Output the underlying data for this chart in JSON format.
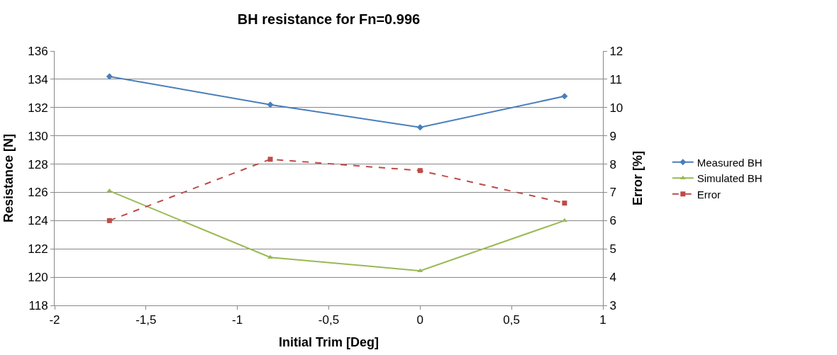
{
  "chart_data": {
    "type": "line",
    "title": "BH resistance for Fn=0.996",
    "xlabel": "Initial Trim [Deg]",
    "ylabel": "Resistance [N]",
    "y2label": "Error [%]",
    "x": [
      -1.7,
      -0.82,
      0,
      0.79
    ],
    "series": [
      {
        "name": "Measured BH",
        "color": "#4a7ebb",
        "values": [
          134.2,
          132.2,
          130.6,
          132.8
        ],
        "marker": "diamond",
        "line_style": "solid"
      },
      {
        "name": "Simulated BH",
        "color": "#98b954",
        "values": [
          126.1,
          121.4,
          120.45,
          124.0
        ],
        "marker": "triangle",
        "line_style": "solid"
      },
      {
        "name": "Error",
        "color": "#be4b48",
        "values": [
          6.0,
          8.17,
          7.77,
          6.62
        ],
        "marker": "square",
        "line_style": "dashed",
        "axis": "y2"
      }
    ],
    "xlim": [
      -2,
      1
    ],
    "xticks": [
      {
        "value": -2,
        "label": "-2"
      },
      {
        "value": -1.5,
        "label": "-1,5"
      },
      {
        "value": -1,
        "label": "-1"
      },
      {
        "value": -0.5,
        "label": "-0,5"
      },
      {
        "value": 0,
        "label": "0"
      },
      {
        "value": 0.5,
        "label": "0,5"
      },
      {
        "value": 1,
        "label": "1"
      }
    ],
    "ylim": [
      118,
      136
    ],
    "yticks": [
      118,
      120,
      122,
      124,
      126,
      128,
      130,
      132,
      134,
      136
    ],
    "y2lim": [
      3,
      12
    ],
    "y2ticks": [
      3,
      4,
      5,
      6,
      7,
      8,
      9,
      10,
      11,
      12
    ],
    "grid": "y",
    "legend": "right"
  }
}
